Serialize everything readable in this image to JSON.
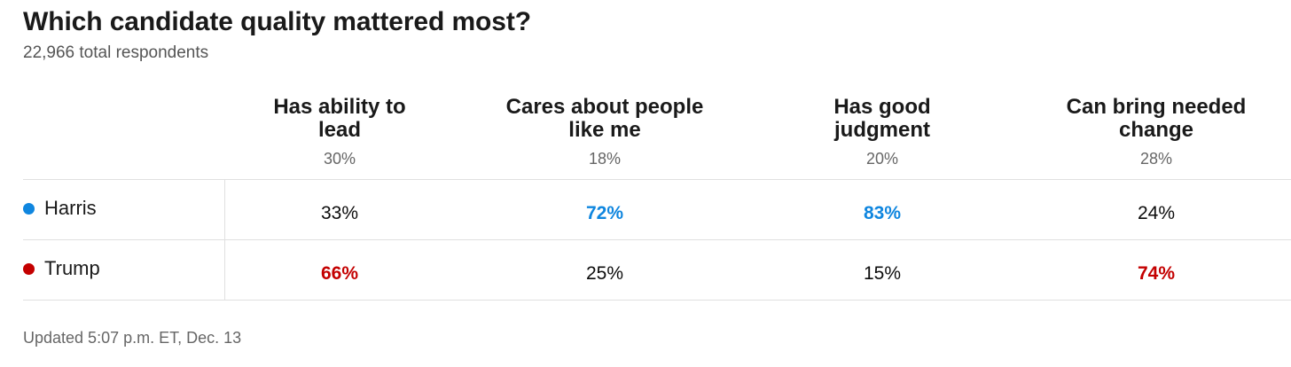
{
  "title": "Which candidate quality mattered most?",
  "subtitle": "22,966 total respondents",
  "footer": "Updated 5:07 p.m. ET, Dec. 13",
  "colors": {
    "harris": "#0f86df",
    "trump": "#c40000"
  },
  "chart_data": {
    "type": "table",
    "title": "Which candidate quality mattered most?",
    "subtitle": "22,966 total respondents",
    "columns": [
      {
        "label": "Has ability to lead",
        "line1": "Has ability to",
        "line2": "lead",
        "share": "30%"
      },
      {
        "label": "Cares about people like me",
        "line1": "Cares about people",
        "line2": "like me",
        "share": "18%"
      },
      {
        "label": "Has good judgment",
        "line1": "Has good",
        "line2": "judgment",
        "share": "20%"
      },
      {
        "label": "Can bring needed change",
        "line1": "Can bring needed",
        "line2": "change",
        "share": "28%"
      }
    ],
    "rows": [
      {
        "name": "Harris",
        "color": "#0f86df",
        "values": [
          "33%",
          "72%",
          "83%",
          "24%"
        ],
        "winner": [
          false,
          true,
          true,
          false
        ]
      },
      {
        "name": "Trump",
        "color": "#c40000",
        "values": [
          "66%",
          "25%",
          "15%",
          "74%"
        ],
        "winner": [
          true,
          false,
          false,
          true
        ]
      }
    ]
  }
}
